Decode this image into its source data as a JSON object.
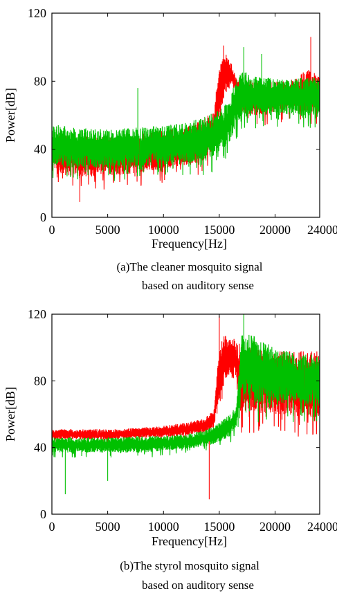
{
  "chart_data": [
    {
      "type": "line",
      "panel": "a",
      "caption_line1": "(a)The cleaner mosquito signal",
      "caption_line2": "based on auditory sense",
      "xlabel": "Frequency[Hz]",
      "ylabel": "Power[dB]",
      "xlim": [
        0,
        24000
      ],
      "ylim": [
        0,
        120
      ],
      "xticks": [
        0,
        5000,
        10000,
        15000,
        20000,
        24000
      ],
      "yticks": [
        0,
        40,
        80,
        120
      ],
      "grid": false,
      "series": [
        {
          "color": "#ff0000",
          "x": [
            0,
            2000,
            4000,
            6000,
            8000,
            10000,
            12000,
            13500,
            14500,
            15000,
            15500,
            16000,
            16500,
            17000,
            18000,
            19000,
            20000,
            21000,
            22000,
            23000,
            24000
          ],
          "low": [
            26,
            24,
            24,
            25,
            26,
            28,
            30,
            33,
            38,
            60,
            72,
            78,
            74,
            62,
            60,
            60,
            62,
            62,
            62,
            62,
            62
          ],
          "high": [
            50,
            48,
            48,
            48,
            49,
            51,
            53,
            57,
            63,
            88,
            98,
            92,
            82,
            82,
            80,
            80,
            80,
            80,
            82,
            88,
            82
          ],
          "spikes": [
            [
              2500,
              9
            ],
            [
              15400,
              101
            ],
            [
              23200,
              106
            ]
          ]
        },
        {
          "color": "#00c000",
          "x": [
            0,
            2000,
            4000,
            6000,
            8000,
            10000,
            12000,
            14000,
            15000,
            16000,
            16500,
            17000,
            18000,
            19000,
            20000,
            21000,
            22000,
            23000,
            24000
          ],
          "low": [
            30,
            29,
            29,
            29,
            30,
            31,
            32,
            34,
            38,
            45,
            55,
            58,
            60,
            60,
            60,
            60,
            60,
            60,
            60
          ],
          "high": [
            55,
            53,
            52,
            52,
            53,
            54,
            56,
            60,
            63,
            70,
            82,
            86,
            84,
            82,
            82,
            82,
            82,
            82,
            82
          ],
          "spikes": [
            [
              7700,
              76
            ],
            [
              17200,
              100
            ],
            [
              18800,
              96
            ]
          ]
        }
      ]
    },
    {
      "type": "line",
      "panel": "b",
      "caption_line1": "(b)The styrol mosquito signal",
      "caption_line2": "based on auditory sense",
      "xlabel": "Frequency[Hz]",
      "ylabel": "Power[dB]",
      "xlim": [
        0,
        24000
      ],
      "ylim": [
        0,
        120
      ],
      "xticks": [
        0,
        5000,
        10000,
        15000,
        20000,
        24000
      ],
      "yticks": [
        0,
        40,
        80,
        120
      ],
      "grid": false,
      "series": [
        {
          "color": "#ff0000",
          "x": [
            0,
            2000,
            4000,
            6000,
            8000,
            10000,
            12000,
            13500,
            14500,
            15000,
            15500,
            16000,
            16500,
            17000,
            18000,
            19000,
            20000,
            21000,
            22000,
            23000,
            24000
          ],
          "low": [
            45,
            45,
            45,
            45,
            46,
            46,
            47,
            49,
            52,
            65,
            80,
            84,
            80,
            62,
            62,
            60,
            60,
            60,
            58,
            58,
            58
          ],
          "high": [
            51,
            51,
            51,
            51,
            52,
            53,
            55,
            57,
            62,
            100,
            108,
            108,
            104,
            102,
            100,
            98,
            98,
            98,
            98,
            98,
            98
          ],
          "spikes": [
            [
              14100,
              9
            ],
            [
              15000,
              119
            ]
          ]
        },
        {
          "color": "#00c000",
          "x": [
            0,
            2000,
            4000,
            6000,
            8000,
            10000,
            12000,
            14000,
            15000,
            16000,
            16500,
            17000,
            18000,
            19000,
            20000,
            21000,
            22000,
            23000,
            24000
          ],
          "low": [
            37,
            37,
            37,
            37,
            37,
            38,
            39,
            41,
            43,
            47,
            52,
            72,
            68,
            66,
            66,
            66,
            66,
            66,
            66
          ],
          "high": [
            46,
            46,
            46,
            46,
            47,
            47,
            48,
            51,
            55,
            60,
            65,
            108,
            108,
            104,
            100,
            98,
            96,
            96,
            95
          ],
          "spikes": [
            [
              1200,
              12
            ],
            [
              5000,
              20
            ],
            [
              17200,
              120
            ]
          ]
        }
      ]
    }
  ]
}
